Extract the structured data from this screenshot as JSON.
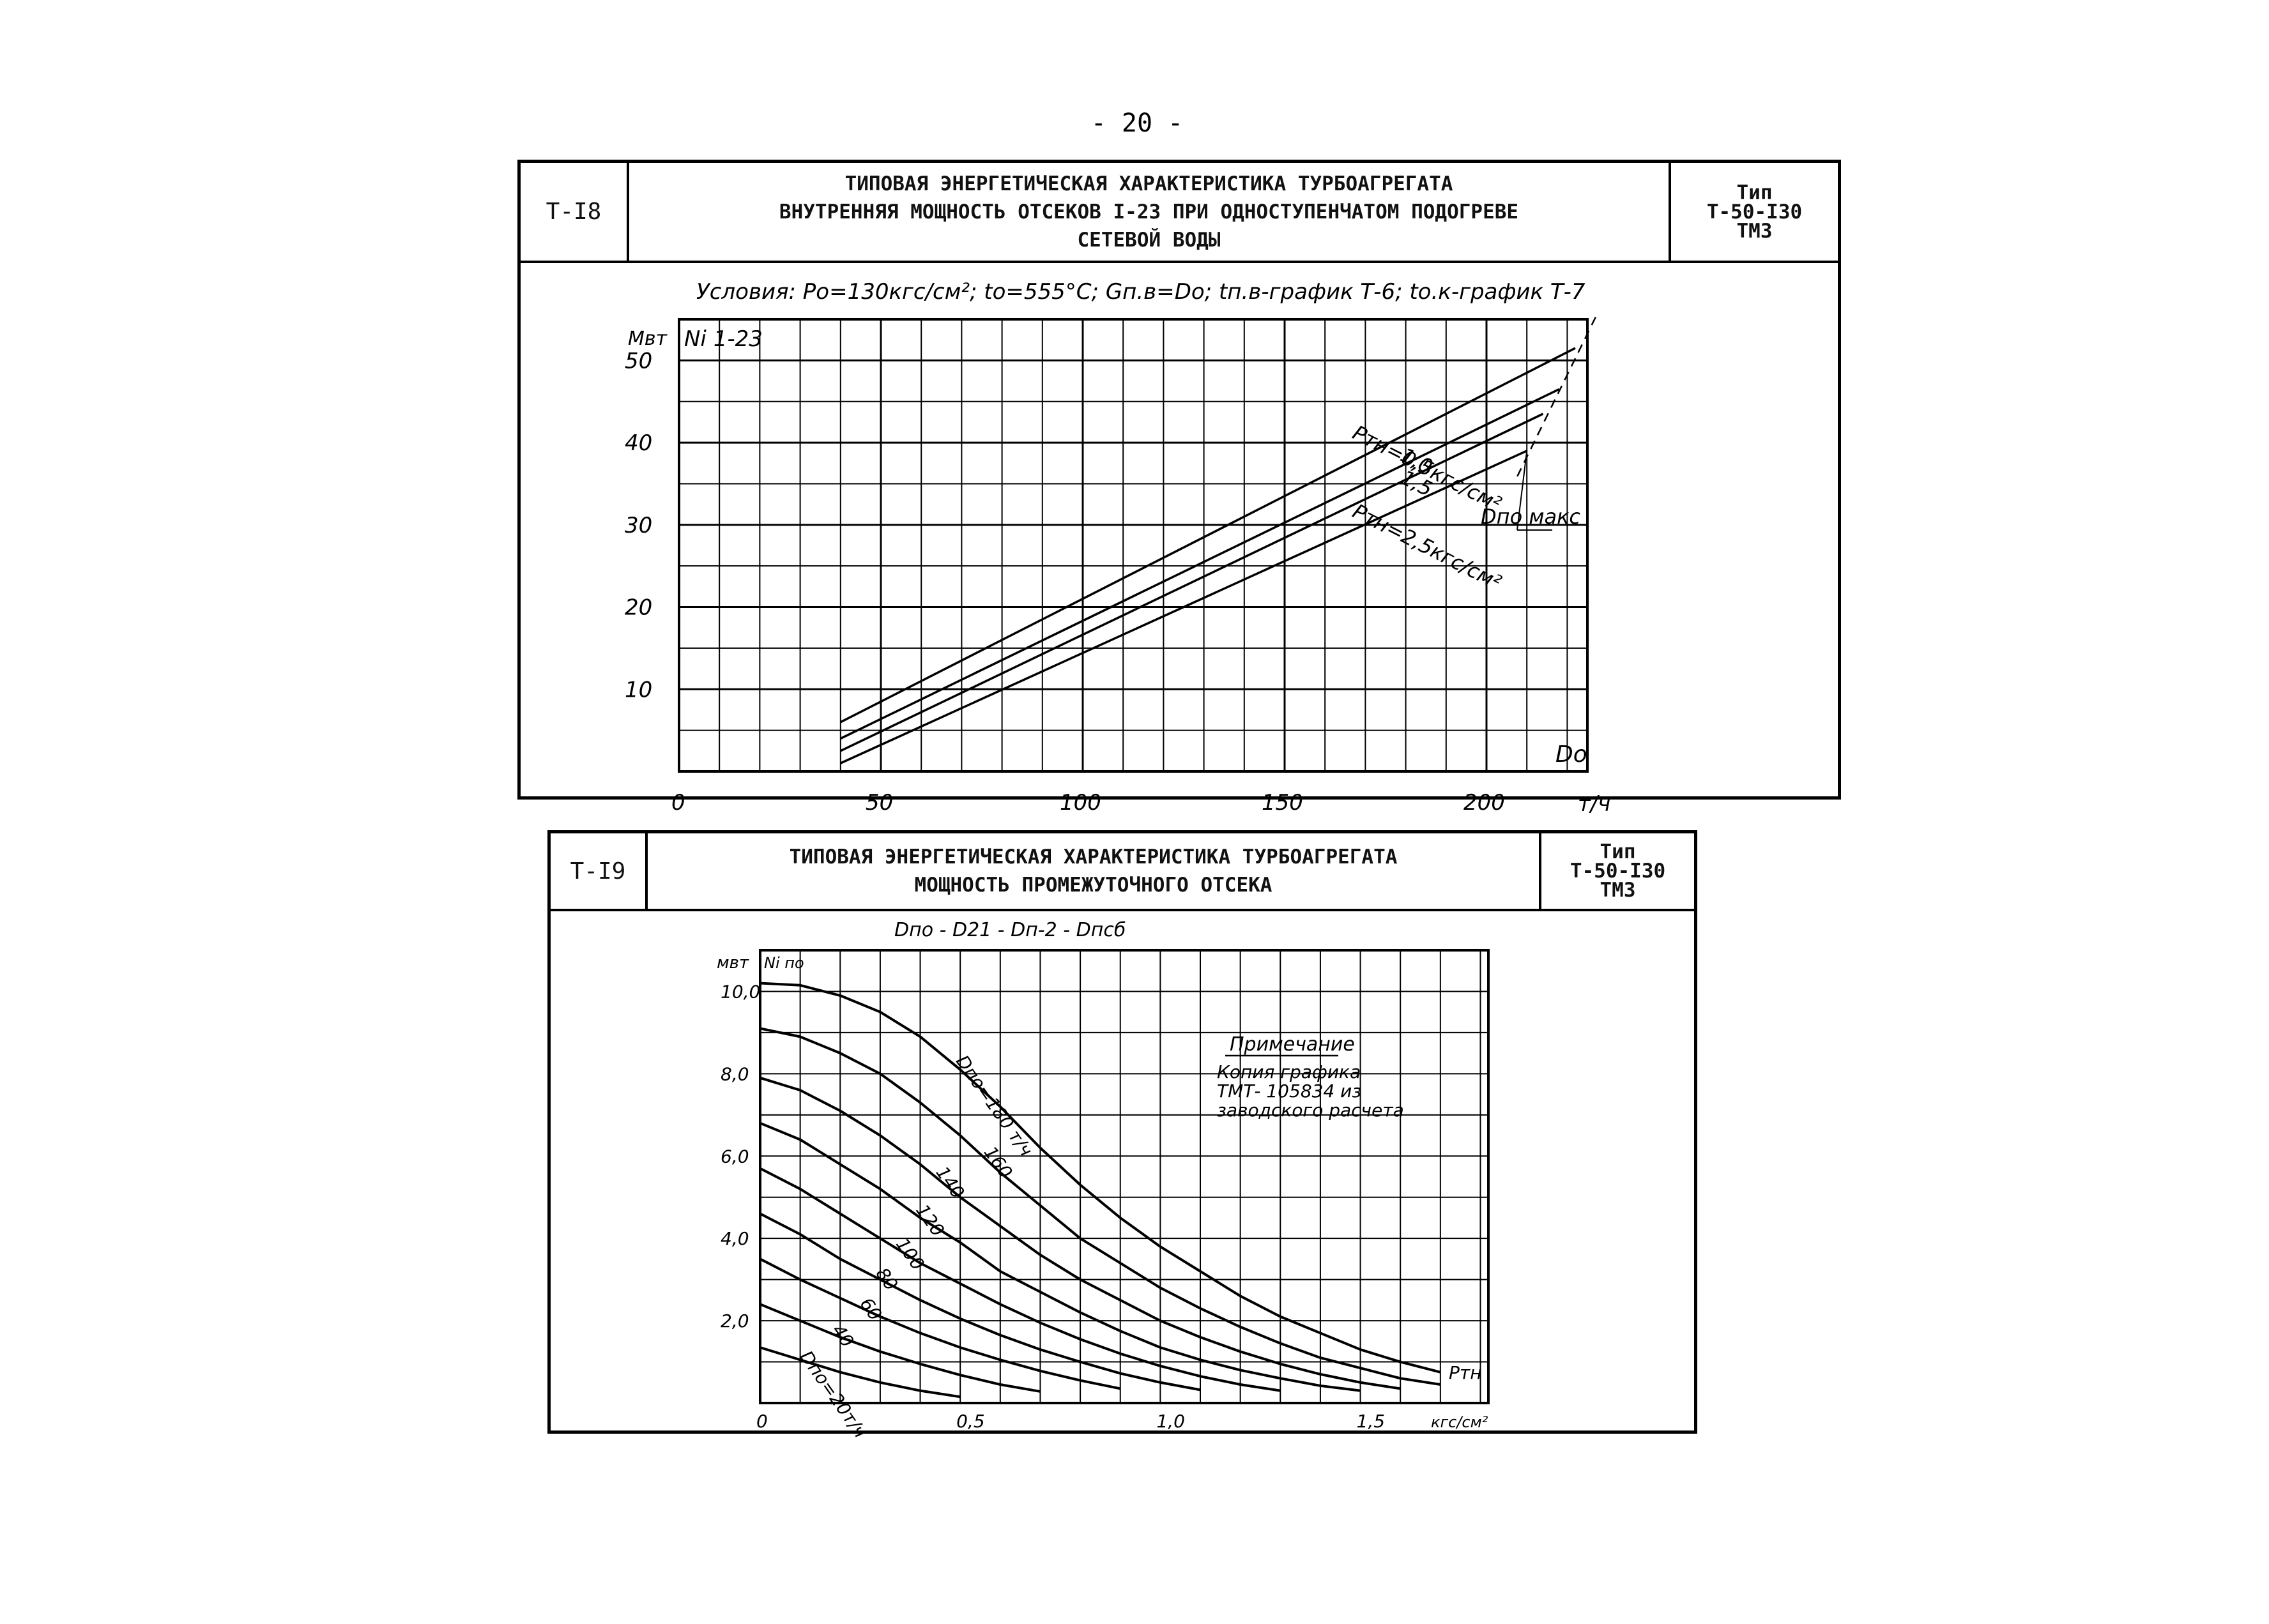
{
  "page_number": "- 20 -",
  "sheets": [
    {
      "code": "Т-I8",
      "title_lines": [
        "ТИПОВАЯ ЭНЕРГЕТИЧЕСКАЯ ХАРАКТЕРИСТИКА ТУРБОАГРЕГАТА",
        "ВНУТРЕННЯЯ МОЩНОСТЬ ОТСЕКОВ I-23 ПРИ ОДНОСТУПЕНЧАТОМ ПОДОГРЕВЕ",
        "СЕТЕВОЙ ВОДЫ"
      ],
      "type_label": "Тип",
      "type_lines": [
        "Т-50-I30",
        "ТМЗ"
      ]
    },
    {
      "code": "Т-I9",
      "title_lines": [
        "ТИПОВАЯ ЭНЕРГЕТИЧЕСКАЯ ХАРАКТЕРИСТИКА ТУРБОАГРЕГАТА",
        "МОЩНОСТЬ ПРОМЕЖУТОЧНОГО ОТСЕКА"
      ],
      "type_label": "Тип",
      "type_lines": [
        "Т-50-I30",
        "ТМЗ"
      ]
    }
  ],
  "chart_data": [
    {
      "type": "line",
      "conditions": "Условия: Pо=130кгс/см²; tо=555°С; Gп.в=Dо; tп.в-график Т-6; tо.к-график Т-7",
      "ylabel": "Ni 1-23",
      "yunit": "Мвт",
      "xlabel": "Dо",
      "xunit": "т/ч",
      "xlim": [
        0,
        225
      ],
      "ylim": [
        0,
        55
      ],
      "xticks": [
        "0",
        "50",
        "100",
        "150",
        "200"
      ],
      "yticks": [
        "10",
        "20",
        "30",
        "40",
        "50"
      ],
      "grid": true,
      "series": [
        {
          "name": "Pтн=0,5кгс/см²",
          "x": [
            40,
            222
          ],
          "y": [
            6,
            51.5
          ]
        },
        {
          "name": "1,0",
          "x": [
            40,
            218
          ],
          "y": [
            4,
            46.5
          ]
        },
        {
          "name": "1,5",
          "x": [
            40,
            214
          ],
          "y": [
            2.5,
            43.5
          ]
        },
        {
          "name": "Pтн=2,5кгс/см²",
          "x": [
            40,
            210
          ],
          "y": [
            1,
            39
          ]
        }
      ],
      "annotations": [
        "Dпо макс"
      ]
    },
    {
      "type": "line",
      "header_text": "Dпо - D21 - Dп-2 - Dпсб",
      "ylabel": "Ni по",
      "yunit": "мвт",
      "xlabel": "Pтн",
      "xunit": "кгс/см²",
      "xlim": [
        0,
        1.82
      ],
      "ylim": [
        0,
        11
      ],
      "xticks": [
        "0",
        "0,5",
        "1,0",
        "1,5"
      ],
      "yticks": [
        "2,0",
        "4,0",
        "6,0",
        "8,0",
        "10,0"
      ],
      "grid": true,
      "note_title": "Примечание",
      "note_lines": [
        "Копия графика",
        "ТМТ- 105834 из",
        "заводского расчета"
      ],
      "series": [
        {
          "name": "Dпо=180 т/ч",
          "x": [
            0,
            0.1,
            0.2,
            0.3,
            0.4,
            0.5,
            0.6,
            0.7,
            0.8,
            0.9,
            1.0,
            1.1,
            1.2,
            1.3,
            1.4,
            1.5,
            1.6,
            1.7
          ],
          "y": [
            10.2,
            10.15,
            9.9,
            9.5,
            8.9,
            8.1,
            7.2,
            6.2,
            5.3,
            4.5,
            3.8,
            3.2,
            2.6,
            2.1,
            1.7,
            1.3,
            1.0,
            0.75
          ]
        },
        {
          "name": "160",
          "x": [
            0,
            0.1,
            0.2,
            0.3,
            0.4,
            0.5,
            0.6,
            0.7,
            0.8,
            0.9,
            1.0,
            1.1,
            1.2,
            1.3,
            1.4,
            1.5,
            1.6,
            1.7
          ],
          "y": [
            9.1,
            8.9,
            8.5,
            8.0,
            7.3,
            6.5,
            5.6,
            4.8,
            4.0,
            3.4,
            2.8,
            2.3,
            1.85,
            1.45,
            1.1,
            0.85,
            0.6,
            0.45
          ]
        },
        {
          "name": "140",
          "x": [
            0,
            0.1,
            0.2,
            0.3,
            0.4,
            0.5,
            0.6,
            0.7,
            0.8,
            0.9,
            1.0,
            1.1,
            1.2,
            1.3,
            1.4,
            1.5,
            1.6
          ],
          "y": [
            7.9,
            7.6,
            7.1,
            6.5,
            5.8,
            5.0,
            4.3,
            3.6,
            3.0,
            2.5,
            2.0,
            1.6,
            1.25,
            0.95,
            0.7,
            0.5,
            0.35
          ]
        },
        {
          "name": "120",
          "x": [
            0,
            0.1,
            0.2,
            0.3,
            0.4,
            0.5,
            0.6,
            0.7,
            0.8,
            0.9,
            1.0,
            1.1,
            1.2,
            1.3,
            1.4,
            1.5
          ],
          "y": [
            6.8,
            6.4,
            5.8,
            5.2,
            4.5,
            3.9,
            3.2,
            2.7,
            2.2,
            1.75,
            1.35,
            1.05,
            0.8,
            0.6,
            0.42,
            0.3
          ]
        },
        {
          "name": "100",
          "x": [
            0,
            0.1,
            0.2,
            0.3,
            0.4,
            0.5,
            0.6,
            0.7,
            0.8,
            0.9,
            1.0,
            1.1,
            1.2,
            1.3
          ],
          "y": [
            5.7,
            5.2,
            4.6,
            4.0,
            3.4,
            2.9,
            2.4,
            1.95,
            1.55,
            1.2,
            0.9,
            0.65,
            0.45,
            0.3
          ]
        },
        {
          "name": "80",
          "x": [
            0,
            0.1,
            0.2,
            0.3,
            0.4,
            0.5,
            0.6,
            0.7,
            0.8,
            0.9,
            1.0,
            1.1
          ],
          "y": [
            4.6,
            4.1,
            3.5,
            3.0,
            2.5,
            2.05,
            1.65,
            1.3,
            1.0,
            0.72,
            0.5,
            0.32
          ]
        },
        {
          "name": "60",
          "x": [
            0,
            0.1,
            0.2,
            0.3,
            0.4,
            0.5,
            0.6,
            0.7,
            0.8,
            0.9
          ],
          "y": [
            3.5,
            3.0,
            2.55,
            2.1,
            1.7,
            1.35,
            1.05,
            0.78,
            0.55,
            0.35
          ]
        },
        {
          "name": "40",
          "x": [
            0,
            0.1,
            0.2,
            0.3,
            0.4,
            0.5,
            0.6,
            0.7
          ],
          "y": [
            2.4,
            2.0,
            1.6,
            1.25,
            0.95,
            0.68,
            0.45,
            0.28
          ]
        },
        {
          "name": "Dпо=20т/ч",
          "x": [
            0,
            0.1,
            0.2,
            0.3,
            0.4,
            0.5
          ],
          "y": [
            1.35,
            1.05,
            0.75,
            0.5,
            0.3,
            0.15
          ]
        }
      ]
    }
  ]
}
